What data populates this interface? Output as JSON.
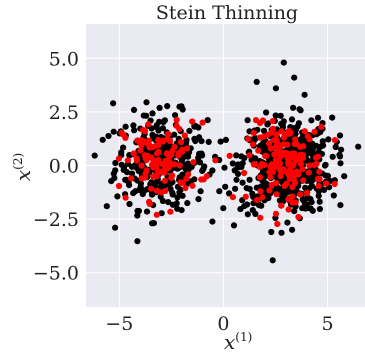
{
  "chart_data": {
    "type": "scatter",
    "title": "Stein Thinning",
    "xlabel": "x",
    "xlabel_superscript": "(1)",
    "ylabel": "x",
    "ylabel_superscript": "(2)",
    "xlim": [
      -6.6,
      6.8
    ],
    "ylim": [
      -6.6,
      6.6
    ],
    "xticks": [
      -5,
      0,
      5
    ],
    "xtick_labels": [
      "−5",
      "0",
      "5"
    ],
    "yticks": [
      5.0,
      2.5,
      0.0,
      -2.5,
      -5.0
    ],
    "ytick_labels": [
      "5.0",
      "2.5",
      "0.0",
      "−2.5",
      "−5.0"
    ],
    "grid": true,
    "background": "#eaeaf2",
    "series": [
      {
        "color": "#000000",
        "role": "all samples",
        "clusters": [
          {
            "center": [
              -3.0,
              0.2
            ],
            "spread": [
              1.1,
              1.1
            ],
            "count": 320
          },
          {
            "center": [
              3.0,
              0.0
            ],
            "spread": [
              1.1,
              1.1
            ],
            "count": 520
          }
        ],
        "points": [
          [
            -5.3,
            2.9
          ],
          [
            -5.2,
            -2.9
          ],
          [
            -5.6,
            -1.9
          ],
          [
            -5.8,
            1.2
          ],
          [
            2.9,
            4.8
          ],
          [
            3.4,
            4.1
          ],
          [
            1.6,
            3.9
          ],
          [
            3.9,
            3.3
          ],
          [
            5.6,
            1.4
          ],
          [
            5.8,
            -0.5
          ],
          [
            5.3,
            -1.4
          ],
          [
            1.0,
            -1.9
          ],
          [
            2.3,
            -3.1
          ],
          [
            3.3,
            -3.0
          ],
          [
            -0.4,
            0.4
          ],
          [
            -0.2,
            -1.2
          ]
        ]
      },
      {
        "color": "#ff0000",
        "role": "selected points",
        "clusters": [
          {
            "center": [
              -3.0,
              0.2
            ],
            "spread": [
              0.9,
              0.9
            ],
            "count": 110
          },
          {
            "center": [
              3.0,
              0.1
            ],
            "spread": [
              0.9,
              0.9
            ],
            "count": 150
          }
        ],
        "points": [
          [
            -1.0,
            2.0
          ],
          [
            -0.8,
            -0.5
          ],
          [
            -4.7,
            -1.5
          ],
          [
            -3.2,
            -2.3
          ],
          [
            4.7,
            1.8
          ],
          [
            1.9,
            2.1
          ],
          [
            3.6,
            -2.4
          ]
        ]
      }
    ]
  }
}
